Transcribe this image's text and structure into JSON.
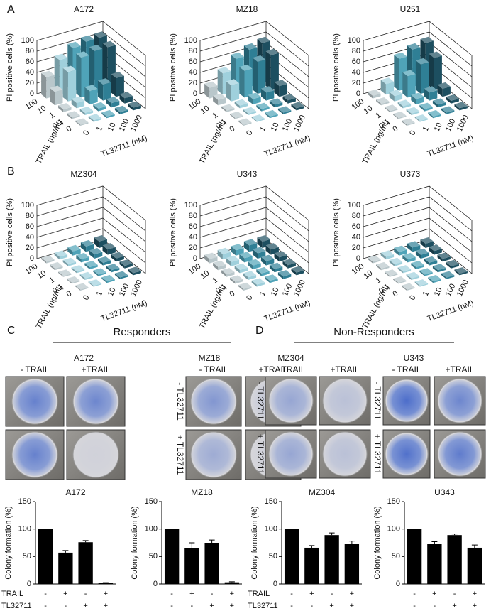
{
  "panels": [
    "A",
    "B",
    "C",
    "D"
  ],
  "groups": [
    "Responders",
    "Non-Responders"
  ],
  "photos": [
    {
      "title": "A172",
      "columns": [
        "- TRAIL",
        "+TRAIL"
      ]
    },
    {
      "title": "MZ18",
      "columns": [
        "- TRAIL",
        "+TRAIL"
      ],
      "rows": [
        "- TL32711",
        "+ TL32711"
      ]
    },
    {
      "title": "MZ304",
      "columns": [
        "- TRAIL",
        "+TRAIL"
      ],
      "rows": [
        "- TL32711",
        "+ TL32711"
      ]
    },
    {
      "title": "U343",
      "columns": [
        "- TRAIL",
        "+TRAIL"
      ],
      "rows": [
        "- TL32711",
        "+ TL32711"
      ]
    }
  ],
  "chart_data": [
    {
      "type": "bar3d",
      "title": "A172",
      "zlabel": "PI positive cells (%)",
      "ylabel": "TRAIL (ng/ml)",
      "xlabel": "TL32711 (nM)",
      "x": [
        "0",
        "1",
        "10",
        "100",
        "1000"
      ],
      "y": [
        "100",
        "10",
        "1",
        "0.1",
        "0"
      ],
      "values": [
        [
          40,
          65,
          80,
          85,
          85
        ],
        [
          25,
          55,
          75,
          80,
          80
        ],
        [
          5,
          10,
          25,
          30,
          35
        ],
        [
          3,
          4,
          5,
          8,
          10
        ],
        [
          2,
          3,
          3,
          4,
          5
        ]
      ],
      "zlim": [
        0,
        100
      ],
      "zticks": [
        0,
        20,
        40,
        60,
        80,
        100
      ],
      "colors": [
        "#b9c7cb",
        "#9fd0dc",
        "#4fa3b8",
        "#2f7f95",
        "#1d4f60"
      ]
    },
    {
      "type": "bar3d",
      "title": "MZ18",
      "zlabel": "PI positive cells (%)",
      "ylabel": "TRAIL (ng/ml)",
      "xlabel": "TL32711 (nM)",
      "x": [
        "0",
        "1",
        "10",
        "100",
        "1000"
      ],
      "y": [
        "100",
        "10",
        "1",
        "0.1",
        "0"
      ],
      "values": [
        [
          20,
          40,
          60,
          70,
          75
        ],
        [
          10,
          30,
          50,
          60,
          65
        ],
        [
          3,
          5,
          10,
          15,
          20
        ],
        [
          2,
          3,
          4,
          5,
          6
        ],
        [
          2,
          2,
          3,
          3,
          4
        ]
      ],
      "zlim": [
        0,
        100
      ],
      "zticks": [
        0,
        20,
        40,
        60,
        80,
        100
      ],
      "colors": [
        "#b9c7cb",
        "#9fd0dc",
        "#4fa3b8",
        "#2f7f95",
        "#1d4f60"
      ]
    },
    {
      "type": "bar3d",
      "title": "U251",
      "zlabel": "PI positive cells (%)",
      "ylabel": "TRAIL (ng/ml)",
      "xlabel": "TL32711 (nM)",
      "x": [
        "0",
        "1",
        "10",
        "100",
        "1000"
      ],
      "y": [
        "100",
        "10",
        "1",
        "0.1",
        "0"
      ],
      "values": [
        [
          5,
          20,
          60,
          70,
          75
        ],
        [
          3,
          10,
          40,
          55,
          60
        ],
        [
          2,
          4,
          10,
          15,
          15
        ],
        [
          2,
          3,
          4,
          5,
          5
        ],
        [
          2,
          2,
          3,
          3,
          4
        ]
      ],
      "zlim": [
        0,
        100
      ],
      "zticks": [
        0,
        20,
        40,
        60,
        80,
        100
      ],
      "colors": [
        "#b9c7cb",
        "#9fd0dc",
        "#4fa3b8",
        "#2f7f95",
        "#1d4f60"
      ]
    },
    {
      "type": "bar3d",
      "title": "MZ304",
      "zlabel": "PI positive cells (%)",
      "ylabel": "TRAIL (ng/ml)",
      "xlabel": "TL32711 (nM)",
      "x": [
        "0",
        "1",
        "10",
        "100",
        "1000"
      ],
      "y": [
        "100",
        "10",
        "1",
        "0.1",
        "0"
      ],
      "values": [
        [
          3,
          5,
          8,
          10,
          12
        ],
        [
          3,
          4,
          6,
          8,
          10
        ],
        [
          2,
          3,
          4,
          5,
          6
        ],
        [
          2,
          3,
          3,
          4,
          5
        ],
        [
          2,
          2,
          3,
          3,
          4
        ]
      ],
      "zlim": [
        0,
        100
      ],
      "zticks": [
        0,
        20,
        40,
        60,
        80,
        100
      ],
      "colors": [
        "#b9c7cb",
        "#9fd0dc",
        "#4fa3b8",
        "#2f7f95",
        "#1d4f60"
      ]
    },
    {
      "type": "bar3d",
      "title": "U343",
      "zlabel": "PI positive cells (%)",
      "ylabel": "TRAIL (ng/ml)",
      "xlabel": "TL32711 (nM)",
      "x": [
        "0",
        "1",
        "10",
        "100",
        "1000"
      ],
      "y": [
        "100",
        "10",
        "1",
        "0.1",
        "0"
      ],
      "values": [
        [
          8,
          10,
          10,
          12,
          12
        ],
        [
          6,
          8,
          8,
          10,
          10
        ],
        [
          5,
          6,
          7,
          8,
          8
        ],
        [
          4,
          5,
          5,
          6,
          6
        ],
        [
          3,
          4,
          4,
          5,
          5
        ]
      ],
      "zlim": [
        0,
        100
      ],
      "zticks": [
        0,
        20,
        40,
        60,
        80,
        100
      ],
      "colors": [
        "#b9c7cb",
        "#9fd0dc",
        "#4fa3b8",
        "#2f7f95",
        "#1d4f60"
      ]
    },
    {
      "type": "bar3d",
      "title": "U373",
      "zlabel": "PI positive cells (%)",
      "ylabel": "TRAIL (ng/ml)",
      "xlabel": "TL32711 (nM)",
      "x": [
        "0",
        "1",
        "10",
        "100",
        "1000"
      ],
      "y": [
        "100",
        "10",
        "1",
        "0.1",
        "0"
      ],
      "values": [
        [
          3,
          5,
          7,
          8,
          8
        ],
        [
          3,
          4,
          6,
          7,
          7
        ],
        [
          2,
          3,
          4,
          5,
          5
        ],
        [
          2,
          3,
          3,
          4,
          4
        ],
        [
          2,
          2,
          3,
          3,
          3
        ]
      ],
      "zlim": [
        0,
        100
      ],
      "zticks": [
        0,
        20,
        40,
        60,
        80,
        100
      ],
      "colors": [
        "#b9c7cb",
        "#9fd0dc",
        "#4fa3b8",
        "#2f7f95",
        "#1d4f60"
      ]
    },
    {
      "type": "bar",
      "title": "A172",
      "ylabel": "Colony formation (%)",
      "ylim": [
        0,
        150
      ],
      "yticks": [
        0,
        50,
        100,
        150
      ],
      "values": [
        100,
        57,
        76,
        2
      ],
      "errors": [
        0,
        4,
        3,
        0.5
      ],
      "color": "#000000",
      "rows": [
        {
          "name": "TRAIL",
          "signs": [
            "-",
            "+",
            "-",
            "+"
          ]
        },
        {
          "name": "TL32711",
          "signs": [
            "-",
            "-",
            "+",
            "+"
          ]
        }
      ]
    },
    {
      "type": "bar",
      "title": "MZ18",
      "ylabel": "Colony formation (%)",
      "ylim": [
        0,
        150
      ],
      "yticks": [
        0,
        50,
        100,
        150
      ],
      "values": [
        100,
        65,
        75,
        3
      ],
      "errors": [
        0,
        10,
        5,
        1
      ],
      "color": "#000000",
      "rows": [
        {
          "signs": [
            "-",
            "+",
            "-",
            "+"
          ]
        },
        {
          "signs": [
            "-",
            "-",
            "+",
            "+"
          ]
        }
      ]
    },
    {
      "type": "bar",
      "title": "MZ304",
      "ylabel": "Colony formation (%)",
      "ylim": [
        0,
        150
      ],
      "yticks": [
        0,
        50,
        100,
        150
      ],
      "values": [
        100,
        66,
        89,
        73
      ],
      "errors": [
        0,
        4,
        4,
        5
      ],
      "color": "#000000",
      "rows": [
        {
          "name": "TRAIL",
          "signs": [
            "-",
            "+",
            "-",
            "+"
          ]
        },
        {
          "name": "TL32711",
          "signs": [
            "-",
            "-",
            "+",
            "+"
          ]
        }
      ]
    },
    {
      "type": "bar",
      "title": "U343",
      "ylabel": "Colony formation (%)",
      "ylim": [
        0,
        150
      ],
      "yticks": [
        0,
        50,
        100,
        150
      ],
      "values": [
        100,
        73,
        89,
        66
      ],
      "errors": [
        0,
        4,
        2,
        5
      ],
      "color": "#000000",
      "rows": [
        {
          "signs": [
            "-",
            "+",
            "-",
            "+"
          ]
        },
        {
          "signs": [
            "-",
            "-",
            "+",
            "+"
          ]
        }
      ]
    }
  ]
}
